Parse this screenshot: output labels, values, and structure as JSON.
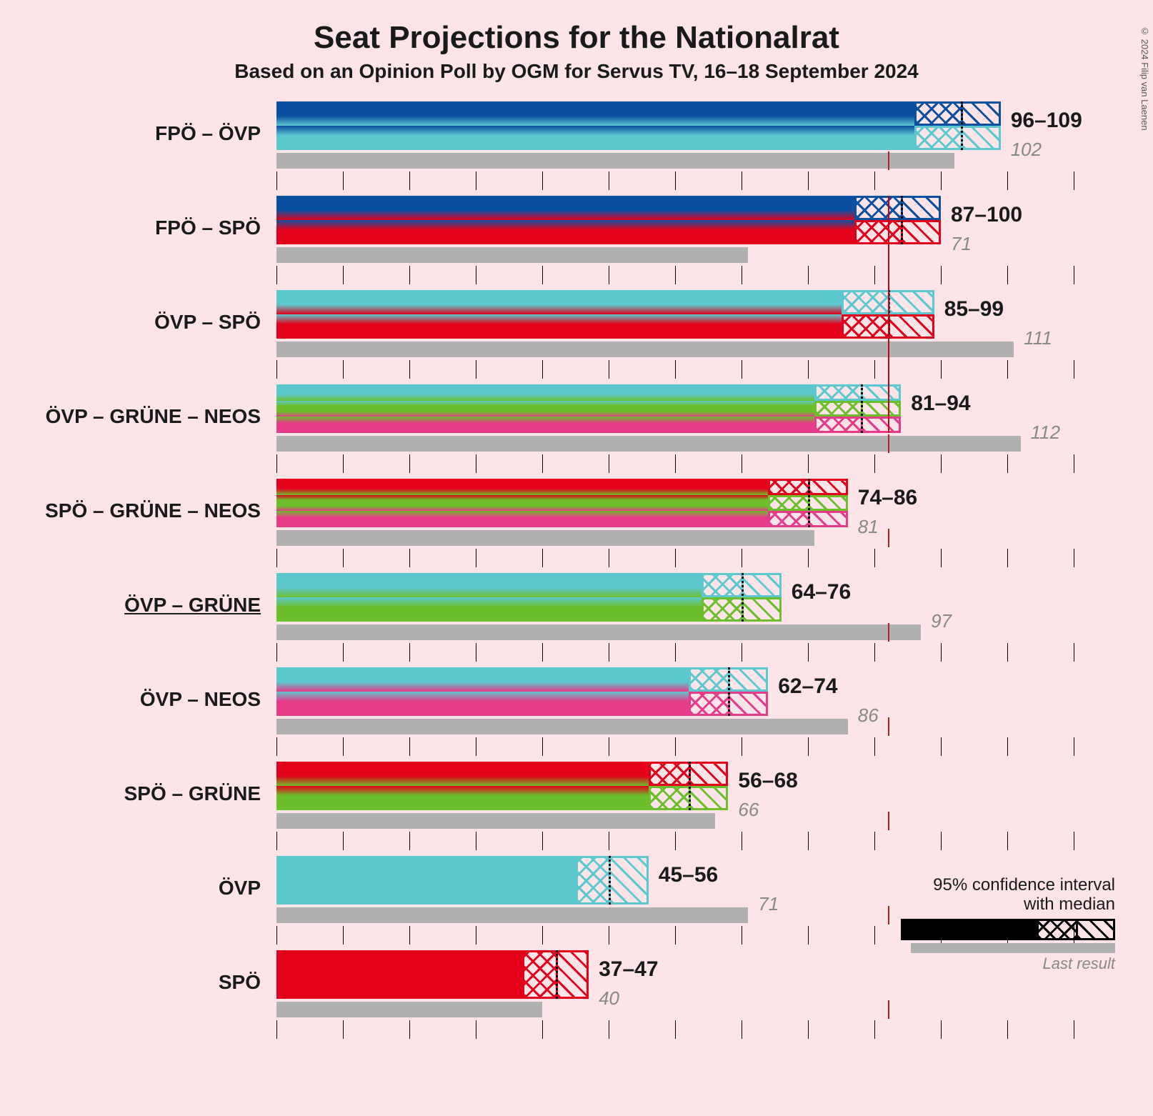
{
  "title": "Seat Projections for the Nationalrat",
  "subtitle": "Based on an Opinion Poll by OGM for Servus TV, 16–18 September 2024",
  "credit": "© 2024 Filip van Laenen",
  "background_color": "#fce4e8",
  "scale": {
    "max": 120,
    "tick_step": 10,
    "majority": 92
  },
  "party_colors": {
    "FPO": "#0b4fa0",
    "OVP": "#5dc7cf",
    "SPO": "#e2001a",
    "GRUNE": "#6bbf2a",
    "NEOS": "#e63b89",
    "grey": "#b0b0b0"
  },
  "legend": {
    "line1": "95% confidence interval",
    "line2": "with median",
    "last": "Last result"
  },
  "typography": {
    "title_fontsize_pt": 33,
    "subtitle_fontsize_pt": 21,
    "label_fontsize_pt": 21,
    "value_fontsize_pt": 22,
    "lastval_fontsize_pt": 19
  },
  "rows": [
    {
      "label": "FPÖ – ÖVP",
      "colors": [
        "FPO",
        "OVP"
      ],
      "low": 96,
      "median": 103,
      "high": 109,
      "last": 102,
      "range_text": "96–109",
      "last_text": "102",
      "underline": false
    },
    {
      "label": "FPÖ – SPÖ",
      "colors": [
        "FPO",
        "SPO"
      ],
      "low": 87,
      "median": 94,
      "high": 100,
      "last": 71,
      "range_text": "87–100",
      "last_text": "71",
      "underline": false
    },
    {
      "label": "ÖVP – SPÖ",
      "colors": [
        "OVP",
        "SPO"
      ],
      "low": 85,
      "median": 92,
      "high": 99,
      "last": 111,
      "range_text": "85–99",
      "last_text": "111",
      "underline": false
    },
    {
      "label": "ÖVP – GRÜNE – NEOS",
      "colors": [
        "OVP",
        "GRUNE",
        "NEOS"
      ],
      "low": 81,
      "median": 88,
      "high": 94,
      "last": 112,
      "range_text": "81–94",
      "last_text": "112",
      "underline": false
    },
    {
      "label": "SPÖ – GRÜNE – NEOS",
      "colors": [
        "SPO",
        "GRUNE",
        "NEOS"
      ],
      "low": 74,
      "median": 80,
      "high": 86,
      "last": 81,
      "range_text": "74–86",
      "last_text": "81",
      "underline": false
    },
    {
      "label": "ÖVP – GRÜNE",
      "colors": [
        "OVP",
        "GRUNE"
      ],
      "low": 64,
      "median": 70,
      "high": 76,
      "last": 97,
      "range_text": "64–76",
      "last_text": "97",
      "underline": true
    },
    {
      "label": "ÖVP – NEOS",
      "colors": [
        "OVP",
        "NEOS"
      ],
      "low": 62,
      "median": 68,
      "high": 74,
      "last": 86,
      "range_text": "62–74",
      "last_text": "86",
      "underline": false
    },
    {
      "label": "SPÖ – GRÜNE",
      "colors": [
        "SPO",
        "GRUNE"
      ],
      "low": 56,
      "median": 62,
      "high": 68,
      "last": 66,
      "range_text": "56–68",
      "last_text": "66",
      "underline": false
    },
    {
      "label": "ÖVP",
      "colors": [
        "OVP"
      ],
      "low": 45,
      "median": 50,
      "high": 56,
      "last": 71,
      "range_text": "45–56",
      "last_text": "71",
      "underline": false
    },
    {
      "label": "SPÖ",
      "colors": [
        "SPO"
      ],
      "low": 37,
      "median": 42,
      "high": 47,
      "last": 40,
      "range_text": "37–47",
      "last_text": "40",
      "underline": false
    }
  ]
}
